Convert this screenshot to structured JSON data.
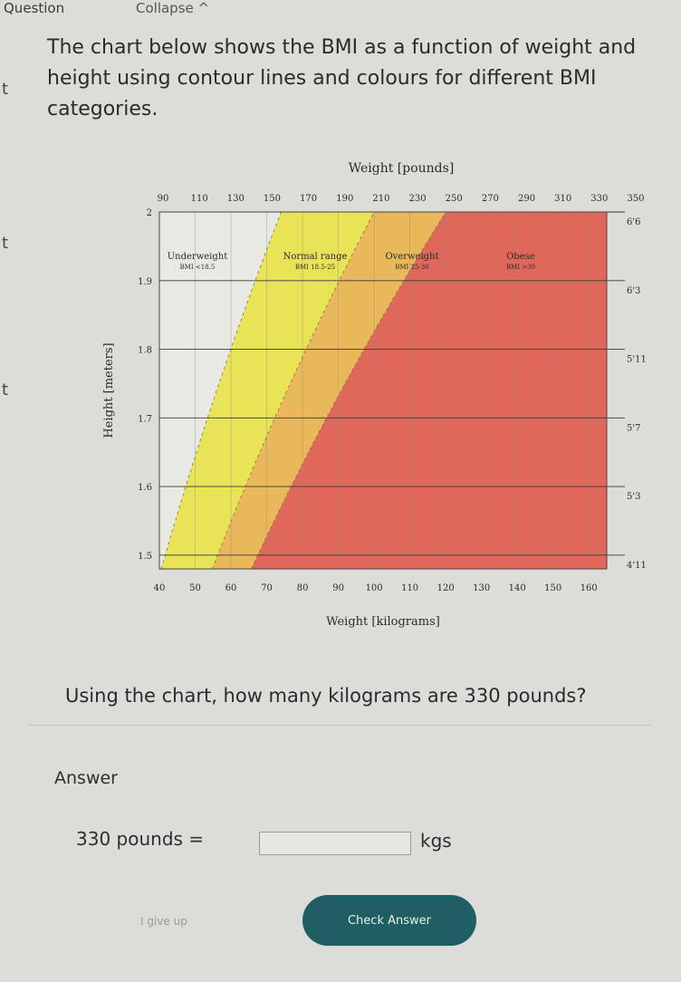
{
  "header": {
    "question_label": "Question",
    "collapse_label": "Collapse ^"
  },
  "intro_text": "The chart below shows the BMI as a function of weight and height using contour lines and colours for different BMI categories.",
  "left_marks": [
    "t",
    "t",
    "t"
  ],
  "chart_data": {
    "type": "contour",
    "title": "Weight [pounds]",
    "xlabel": "Weight [kilograms]",
    "ylabel": "Height [meters]",
    "x_kg_ticks": [
      "40",
      "50",
      "60",
      "70",
      "80",
      "90",
      "100",
      "110",
      "120",
      "130",
      "140",
      "150",
      "160"
    ],
    "x_lb_ticks": [
      "90",
      "110",
      "130",
      "150",
      "170",
      "190",
      "210",
      "230",
      "250",
      "270",
      "290",
      "310",
      "330",
      "350"
    ],
    "y_m_ticks": [
      "1.5",
      "1.6",
      "1.7",
      "1.8",
      "1.9",
      "2"
    ],
    "y_ft_ticks": [
      "4'11",
      "5'3",
      "5'7",
      "5'11",
      "6'3",
      "6'6"
    ],
    "xlim": [
      40,
      165
    ],
    "ylim": [
      1.48,
      2.0
    ],
    "categories": [
      {
        "name": "Underweight",
        "range": "BMI <18.5",
        "bmi_max": 18.5,
        "color": "#e9e9e4"
      },
      {
        "name": "Normal range",
        "range": "BMI 18.5-25",
        "bmi_max": 25,
        "color": "#e8e357"
      },
      {
        "name": "Overweight",
        "range": "BMI 25-30",
        "bmi_max": 30,
        "color": "#e9b85a"
      },
      {
        "name": "Obese",
        "range": "BMI >30",
        "bmi_max": 999,
        "color": "#e0685a"
      }
    ]
  },
  "question_text": "Using the chart, how many kilograms are 330 pounds?",
  "answer_label": "Answer",
  "equation_prefix": "330 pounds =",
  "answer_value": "",
  "answer_unit": "kgs",
  "give_up_label": "I give up",
  "check_button_label": "Check Answer"
}
